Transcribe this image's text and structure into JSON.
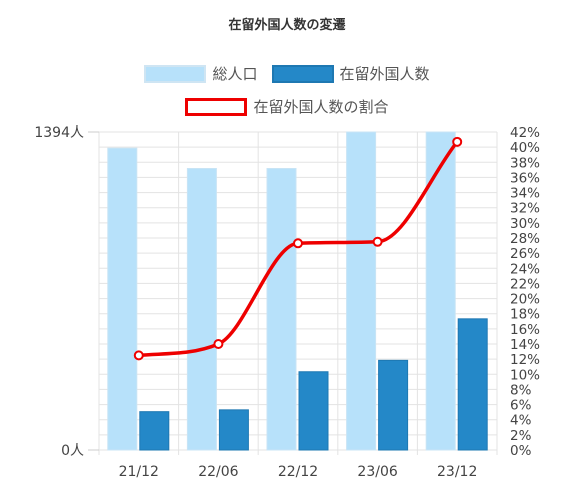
{
  "chart_data": {
    "type": "bar",
    "title": "在留外国人数の変遷",
    "categories": [
      "21/12",
      "22/06",
      "22/12",
      "23/06",
      "23/12"
    ],
    "series": [
      {
        "name": "総人口",
        "type": "bar",
        "axis": "left",
        "values": [
          1323,
          1234,
          1234,
          1394,
          1394
        ],
        "color": "#b7e1fa"
      },
      {
        "name": "在留外国人数",
        "type": "bar",
        "axis": "left",
        "values": [
          168,
          176,
          343,
          393,
          575
        ],
        "color": "#2488c8"
      },
      {
        "name": "在留外国人数の割合",
        "type": "line",
        "axis": "right",
        "smooth": true,
        "values": [
          12.5,
          14.0,
          27.3,
          27.5,
          40.7
        ],
        "color": "#ee0000"
      }
    ],
    "left_axis": {
      "ylim": [
        0,
        1394
      ],
      "tick_labels": [
        "0人",
        "1394人"
      ]
    },
    "right_axis": {
      "ylim": [
        0,
        42
      ],
      "step": 2,
      "unit": "%"
    },
    "grid": true,
    "legend_position": "top"
  }
}
